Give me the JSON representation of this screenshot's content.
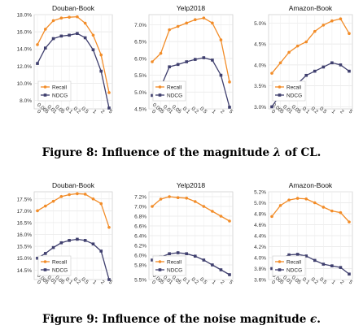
{
  "figures": [
    {
      "caption": {
        "prefix": "Figure 8: Influence of the magnitude ",
        "symbol": "λ",
        "suffix": " of CL."
      },
      "chart_data": [
        {
          "type": "line",
          "title": "Douban-Book",
          "categories": [
            "0",
            "0.005",
            "0.01",
            "0.05",
            "0.1",
            "0.2",
            "0.5",
            "1",
            "2",
            "5"
          ],
          "y_ticks": [
            "8.0%",
            "10.0%",
            "12.0%",
            "14.0%",
            "16.0%",
            "18.0%"
          ],
          "ylim": [
            7.0,
            18.0
          ],
          "legend": "bottom-left",
          "grid": true,
          "series": [
            {
              "name": "Recall",
              "color": "#f28c28",
              "marker": "circle",
              "values": [
                14.5,
                16.3,
                17.3,
                17.6,
                17.7,
                17.75,
                17.0,
                15.6,
                13.3,
                8.9
              ]
            },
            {
              "name": "NDCG",
              "color": "#3f3f6e",
              "marker": "square",
              "values": [
                12.3,
                14.1,
                15.2,
                15.5,
                15.6,
                15.8,
                15.3,
                13.9,
                11.4,
                7.1
              ]
            }
          ]
        },
        {
          "type": "line",
          "title": "Yelp2018",
          "categories": [
            "0",
            "0.005",
            "0.01",
            "0.05",
            "0.1",
            "0.2",
            "0.5",
            "1",
            "2",
            "5"
          ],
          "y_ticks": [
            "4.5%",
            "5.0%",
            "5.5%",
            "6.0%",
            "6.5%",
            "7.0%"
          ],
          "ylim": [
            4.5,
            7.3
          ],
          "legend": "bottom-left",
          "grid": true,
          "series": [
            {
              "name": "Recall",
              "color": "#f28c28",
              "marker": "circle",
              "values": [
                5.9,
                6.15,
                6.85,
                6.95,
                7.05,
                7.15,
                7.2,
                7.05,
                6.55,
                5.3
              ]
            },
            {
              "name": "NDCG",
              "color": "#3f3f6e",
              "marker": "square",
              "values": [
                4.9,
                5.15,
                5.75,
                5.82,
                5.9,
                5.97,
                6.02,
                5.95,
                5.5,
                4.55
              ]
            }
          ]
        },
        {
          "type": "line",
          "title": "Amazon-Book",
          "categories": [
            "0",
            "0.005",
            "0.01",
            "0.05",
            "0.1",
            "0.2",
            "0.5",
            "1",
            "2",
            "5"
          ],
          "y_ticks": [
            "3.0%",
            "3.5%",
            "4.0%",
            "4.5%",
            "5.0%"
          ],
          "ylim": [
            2.95,
            5.2
          ],
          "legend": "bottom-left",
          "grid": true,
          "series": [
            {
              "name": "Recall",
              "color": "#f28c28",
              "marker": "circle",
              "values": [
                3.8,
                4.05,
                4.3,
                4.45,
                4.55,
                4.8,
                4.95,
                5.05,
                5.1,
                4.75
              ]
            },
            {
              "name": "NDCG",
              "color": "#3f3f6e",
              "marker": "square",
              "values": [
                3.0,
                3.3,
                3.45,
                3.55,
                3.75,
                3.85,
                3.95,
                4.05,
                4.0,
                3.85
              ]
            }
          ]
        }
      ]
    },
    {
      "caption": {
        "prefix": "Figure 9: Influence of the noise magnitude ",
        "symbol": "ϵ",
        "suffix": "."
      },
      "chart_data": [
        {
          "type": "line",
          "title": "Douban-Book",
          "categories": [
            "0",
            "0.005",
            "0.01",
            "0.05",
            "0.1",
            "0.2",
            "0.5",
            "1",
            "2",
            "5"
          ],
          "y_ticks": [
            "14.5%",
            "15.0%",
            "15.5%",
            "16.0%",
            "16.5%",
            "17.0%",
            "17.5%"
          ],
          "ylim": [
            14.1,
            17.8
          ],
          "legend": "bottom-left",
          "grid": true,
          "series": [
            {
              "name": "Recall",
              "color": "#f28c28",
              "marker": "circle",
              "values": [
                17.0,
                17.2,
                17.4,
                17.6,
                17.68,
                17.72,
                17.7,
                17.5,
                17.3,
                16.3
              ]
            },
            {
              "name": "NDCG",
              "color": "#3f3f6e",
              "marker": "square",
              "values": [
                15.0,
                15.2,
                15.45,
                15.65,
                15.75,
                15.8,
                15.75,
                15.6,
                15.3,
                14.1
              ]
            }
          ]
        },
        {
          "type": "line",
          "title": "Yelp2018",
          "categories": [
            "0",
            "0.005",
            "0.01",
            "0.05",
            "0.1",
            "0.2",
            "0.5",
            "1",
            "2",
            "5"
          ],
          "y_ticks": [
            "5.5%",
            "5.8%",
            "6.0%",
            "6.2%",
            "6.4%",
            "6.6%",
            "6.8%",
            "7.0%",
            "7.2%"
          ],
          "ylim": [
            5.5,
            7.3
          ],
          "legend": "bottom-left",
          "grid": true,
          "series": [
            {
              "name": "Recall",
              "color": "#f28c28",
              "marker": "circle",
              "values": [
                7.0,
                7.15,
                7.2,
                7.18,
                7.17,
                7.1,
                7.0,
                6.9,
                6.8,
                6.7
              ]
            },
            {
              "name": "NDCG",
              "color": "#3f3f6e",
              "marker": "square",
              "values": [
                5.9,
                5.96,
                6.03,
                6.05,
                6.03,
                5.98,
                5.9,
                5.8,
                5.7,
                5.6
              ]
            }
          ]
        },
        {
          "type": "line",
          "title": "Amazon-Book",
          "categories": [
            "0",
            "0.005",
            "0.01",
            "0.05",
            "0.1",
            "0.2",
            "0.5",
            "1",
            "2",
            "5"
          ],
          "y_ticks": [
            "3.6%",
            "3.8%",
            "4.0%",
            "4.2%",
            "4.4%",
            "4.6%",
            "4.8%",
            "5.0%",
            "5.2%"
          ],
          "ylim": [
            3.6,
            5.2
          ],
          "legend": "bottom-left",
          "grid": true,
          "series": [
            {
              "name": "Recall",
              "color": "#f28c28",
              "marker": "circle",
              "values": [
                4.75,
                4.95,
                5.05,
                5.08,
                5.07,
                5.0,
                4.92,
                4.85,
                4.82,
                4.65
              ]
            },
            {
              "name": "NDCG",
              "color": "#3f3f6e",
              "marker": "square",
              "values": [
                3.8,
                3.98,
                4.05,
                4.06,
                4.03,
                3.95,
                3.88,
                3.85,
                3.82,
                3.7
              ]
            }
          ]
        }
      ]
    }
  ]
}
